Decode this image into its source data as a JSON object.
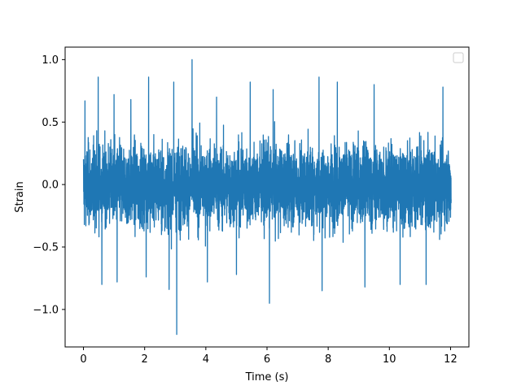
{
  "chart_data": {
    "type": "line",
    "title": "",
    "xlabel": "Time (s)",
    "ylabel": "Strain",
    "xlim": [
      -0.6,
      12.6
    ],
    "ylim": [
      -1.3,
      1.1
    ],
    "xticks": [
      0,
      2,
      4,
      6,
      8,
      10,
      12
    ],
    "xtick_labels": [
      "0",
      "2",
      "4",
      "6",
      "8",
      "10",
      "12"
    ],
    "yticks": [
      -1.0,
      -0.5,
      0.0,
      0.5,
      1.0
    ],
    "ytick_labels": [
      "−1.0",
      "−0.5",
      "0.0",
      "0.5",
      "1.0"
    ],
    "grid": false,
    "legend": {
      "placement": "top-right",
      "entries": []
    },
    "series": [
      {
        "color": "#1f77b4",
        "x_range": [
          0,
          12.02
        ],
        "band_upper_typical": 0.4,
        "band_lower_typical": -0.42,
        "max_point": {
          "x": 3.55,
          "y": 1.0
        },
        "min_point": {
          "x": 3.05,
          "y": -1.2
        },
        "upper_spikes": [
          {
            "x": 0.05,
            "y": 0.67
          },
          {
            "x": 0.48,
            "y": 0.86
          },
          {
            "x": 1.0,
            "y": 0.72
          },
          {
            "x": 1.55,
            "y": 0.68
          },
          {
            "x": 2.13,
            "y": 0.86
          },
          {
            "x": 2.95,
            "y": 0.82
          },
          {
            "x": 3.55,
            "y": 1.0
          },
          {
            "x": 4.35,
            "y": 0.7
          },
          {
            "x": 5.45,
            "y": 0.82
          },
          {
            "x": 6.2,
            "y": 0.76
          },
          {
            "x": 7.7,
            "y": 0.86
          },
          {
            "x": 8.3,
            "y": 0.82
          },
          {
            "x": 9.5,
            "y": 0.8
          },
          {
            "x": 10.35,
            "y": 0.8
          },
          {
            "x": 11.2,
            "y": 0.76
          },
          {
            "x": 11.75,
            "y": 0.78
          }
        ],
        "lower_spikes": [
          {
            "x": 0.6,
            "y": -0.8
          },
          {
            "x": 1.1,
            "y": -0.78
          },
          {
            "x": 2.05,
            "y": -0.74
          },
          {
            "x": 2.8,
            "y": -0.84
          },
          {
            "x": 3.05,
            "y": -1.2
          },
          {
            "x": 4.05,
            "y": -0.78
          },
          {
            "x": 5.0,
            "y": -0.72
          },
          {
            "x": 6.08,
            "y": -0.95
          },
          {
            "x": 7.8,
            "y": -0.85
          },
          {
            "x": 9.2,
            "y": -0.82
          },
          {
            "x": 10.35,
            "y": -0.8
          },
          {
            "x": 11.2,
            "y": -0.8
          }
        ]
      }
    ]
  }
}
